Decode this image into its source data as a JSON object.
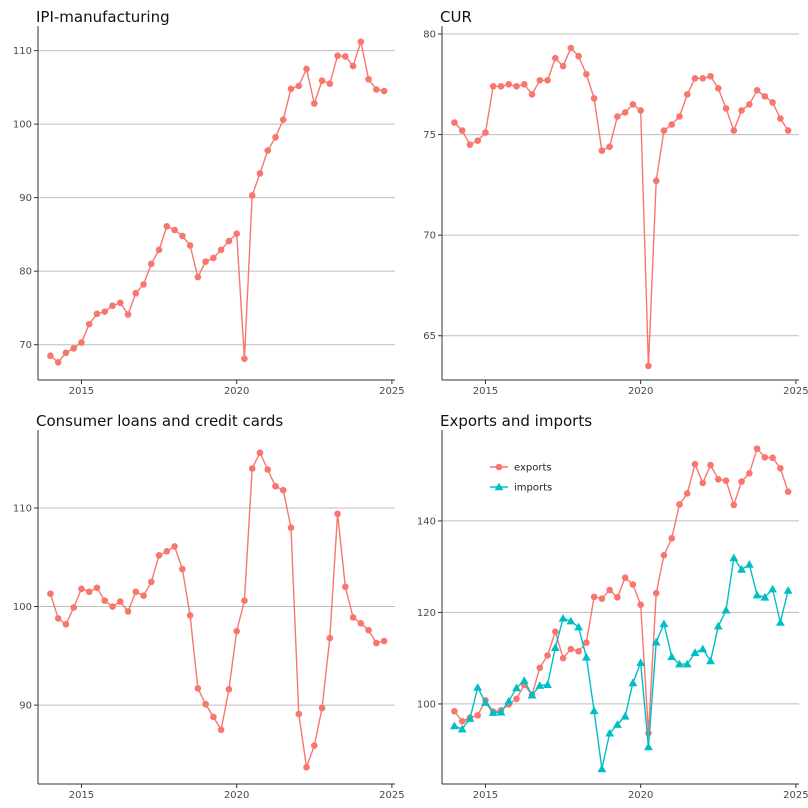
{
  "chart_data": [
    {
      "type": "line",
      "title": "IPI-manufacturing",
      "xlim": [
        2013.6,
        2025.1
      ],
      "ylim": [
        65.2,
        112.8
      ],
      "xticks": [
        2015,
        2020,
        2025
      ],
      "yticks": [
        70,
        80,
        90,
        100,
        110
      ],
      "grid": "horizontal",
      "series": [
        {
          "color": "#F8766D",
          "marker": "circle",
          "x": [
            2014.0,
            2014.25,
            2014.5,
            2014.75,
            2015.0,
            2015.25,
            2015.5,
            2015.75,
            2016.0,
            2016.25,
            2016.5,
            2016.75,
            2017.0,
            2017.25,
            2017.5,
            2017.75,
            2018.0,
            2018.25,
            2018.5,
            2018.75,
            2019.0,
            2019.25,
            2019.5,
            2019.75,
            2020.0,
            2020.25,
            2020.5,
            2020.75,
            2021.0,
            2021.25,
            2021.5,
            2021.75,
            2022.0,
            2022.25,
            2022.5,
            2022.75,
            2023.0,
            2023.25,
            2023.5,
            2023.75,
            2024.0,
            2024.25,
            2024.5,
            2024.75
          ],
          "y": [
            68.5,
            67.6,
            68.9,
            69.5,
            70.3,
            72.8,
            74.2,
            74.5,
            75.3,
            75.7,
            74.1,
            77.0,
            78.2,
            81.0,
            82.9,
            86.1,
            85.6,
            84.8,
            83.5,
            79.2,
            81.3,
            81.8,
            82.9,
            84.1,
            85.1,
            68.1,
            90.3,
            93.3,
            96.4,
            98.2,
            100.6,
            104.8,
            105.2,
            107.5,
            102.8,
            105.9,
            105.5,
            109.3,
            109.2,
            107.9,
            111.2,
            106.1,
            104.7,
            104.5
          ]
        }
      ]
    },
    {
      "type": "line",
      "title": "CUR",
      "xlim": [
        2013.6,
        2025.1
      ],
      "ylim": [
        62.8,
        80.2
      ],
      "xticks": [
        2015,
        2020,
        2025
      ],
      "yticks": [
        65,
        70,
        75,
        80
      ],
      "grid": "horizontal",
      "series": [
        {
          "color": "#F8766D",
          "marker": "circle",
          "x": [
            2014.0,
            2014.25,
            2014.5,
            2014.75,
            2015.0,
            2015.25,
            2015.5,
            2015.75,
            2016.0,
            2016.25,
            2016.5,
            2016.75,
            2017.0,
            2017.25,
            2017.5,
            2017.75,
            2018.0,
            2018.25,
            2018.5,
            2018.75,
            2019.0,
            2019.25,
            2019.5,
            2019.75,
            2020.0,
            2020.25,
            2020.5,
            2020.75,
            2021.0,
            2021.25,
            2021.5,
            2021.75,
            2022.0,
            2022.25,
            2022.5,
            2022.75,
            2023.0,
            2023.25,
            2023.5,
            2023.75,
            2024.0,
            2024.25,
            2024.5,
            2024.75
          ],
          "y": [
            75.6,
            75.2,
            74.5,
            74.7,
            75.1,
            77.4,
            77.4,
            77.5,
            77.4,
            77.5,
            77.0,
            77.7,
            77.7,
            78.8,
            78.4,
            79.3,
            78.9,
            78.0,
            76.8,
            74.2,
            74.4,
            75.9,
            76.1,
            76.5,
            76.2,
            63.5,
            72.7,
            75.2,
            75.5,
            75.9,
            77.0,
            77.8,
            77.8,
            77.9,
            77.3,
            76.3,
            75.2,
            76.2,
            76.5,
            77.2,
            76.9,
            76.6,
            75.8,
            75.2
          ]
        }
      ]
    },
    {
      "type": "line",
      "title": "Consumer loans and credit cards",
      "xlim": [
        2013.6,
        2025.1
      ],
      "ylim": [
        82.0,
        117.5
      ],
      "xticks": [
        2015,
        2020,
        2025
      ],
      "yticks": [
        90,
        100,
        110
      ],
      "grid": "horizontal",
      "series": [
        {
          "color": "#F8766D",
          "marker": "circle",
          "x": [
            2014.0,
            2014.25,
            2014.5,
            2014.75,
            2015.0,
            2015.25,
            2015.5,
            2015.75,
            2016.0,
            2016.25,
            2016.5,
            2016.75,
            2017.0,
            2017.25,
            2017.5,
            2017.75,
            2018.0,
            2018.25,
            2018.5,
            2018.75,
            2019.0,
            2019.25,
            2019.5,
            2019.75,
            2020.0,
            2020.25,
            2020.5,
            2020.75,
            2021.0,
            2021.25,
            2021.5,
            2021.75,
            2022.0,
            2022.25,
            2022.5,
            2022.75,
            2023.0,
            2023.25,
            2023.5,
            2023.75,
            2024.0,
            2024.25,
            2024.5,
            2024.75
          ],
          "y": [
            101.3,
            98.8,
            98.2,
            99.9,
            101.8,
            101.5,
            101.9,
            100.6,
            100.0,
            100.5,
            99.5,
            101.5,
            101.1,
            102.5,
            105.2,
            105.6,
            106.1,
            103.8,
            99.1,
            91.7,
            90.1,
            88.8,
            87.5,
            91.6,
            97.5,
            100.6,
            114.0,
            115.6,
            113.9,
            112.2,
            111.8,
            108.0,
            89.1,
            83.7,
            85.9,
            89.7,
            96.8,
            109.4,
            102.0,
            98.9,
            98.3,
            97.6,
            96.3,
            96.5
          ]
        }
      ]
    },
    {
      "type": "line",
      "title": "Exports and imports",
      "xlim": [
        2013.6,
        2025.1
      ],
      "ylim": [
        82.5,
        159.0
      ],
      "xticks": [
        2015,
        2020,
        2025
      ],
      "yticks": [
        100,
        120,
        140
      ],
      "grid": "horizontal",
      "legend": "top-left",
      "series": [
        {
          "name": "exports",
          "color": "#F8766D",
          "marker": "circle",
          "x": [
            2014.0,
            2014.25,
            2014.5,
            2014.75,
            2015.0,
            2015.25,
            2015.5,
            2015.75,
            2016.0,
            2016.25,
            2016.5,
            2016.75,
            2017.0,
            2017.25,
            2017.5,
            2017.75,
            2018.0,
            2018.25,
            2018.5,
            2018.75,
            2019.0,
            2019.25,
            2019.5,
            2019.75,
            2020.0,
            2020.25,
            2020.5,
            2020.75,
            2021.0,
            2021.25,
            2021.5,
            2021.75,
            2022.0,
            2022.25,
            2022.5,
            2022.75,
            2023.0,
            2023.25,
            2023.5,
            2023.75,
            2024.0,
            2024.25,
            2024.5,
            2024.75
          ],
          "y": [
            98.4,
            96.2,
            97.0,
            97.5,
            100.8,
            98.3,
            98.6,
            99.9,
            101.1,
            104.2,
            102.0,
            107.9,
            110.6,
            115.8,
            110.0,
            112.0,
            111.5,
            113.4,
            123.4,
            123.0,
            124.9,
            123.3,
            127.6,
            126.1,
            121.7,
            93.6,
            124.2,
            132.5,
            136.2,
            143.6,
            146.0,
            152.4,
            148.3,
            152.2,
            149.1,
            148.8,
            143.5,
            148.6,
            150.4,
            155.8,
            153.9,
            153.8,
            151.5,
            146.4
          ]
        },
        {
          "name": "imports",
          "color": "#00BFC4",
          "marker": "triangle",
          "x": [
            2014.0,
            2014.25,
            2014.5,
            2014.75,
            2015.0,
            2015.25,
            2015.5,
            2015.75,
            2016.0,
            2016.25,
            2016.5,
            2016.75,
            2017.0,
            2017.25,
            2017.5,
            2017.75,
            2018.0,
            2018.25,
            2018.5,
            2018.75,
            2019.0,
            2019.25,
            2019.5,
            2019.75,
            2020.0,
            2020.25,
            2020.5,
            2020.75,
            2021.0,
            2021.25,
            2021.5,
            2021.75,
            2022.0,
            2022.25,
            2022.5,
            2022.75,
            2023.0,
            2023.25,
            2023.5,
            2023.75,
            2024.0,
            2024.25,
            2024.5,
            2024.75
          ],
          "y": [
            95.2,
            94.5,
            96.8,
            103.6,
            100.3,
            98.1,
            98.2,
            100.6,
            103.5,
            105.1,
            101.9,
            104.0,
            104.2,
            112.3,
            118.7,
            118.1,
            116.8,
            110.2,
            98.5,
            85.8,
            93.6,
            95.5,
            97.3,
            104.6,
            109.0,
            90.6,
            113.5,
            117.5,
            110.3,
            108.7,
            108.7,
            111.2,
            112.0,
            109.4,
            117.0,
            120.5,
            131.9,
            129.4,
            130.5,
            123.8,
            123.3,
            125.1,
            117.8,
            124.8
          ]
        }
      ]
    }
  ]
}
